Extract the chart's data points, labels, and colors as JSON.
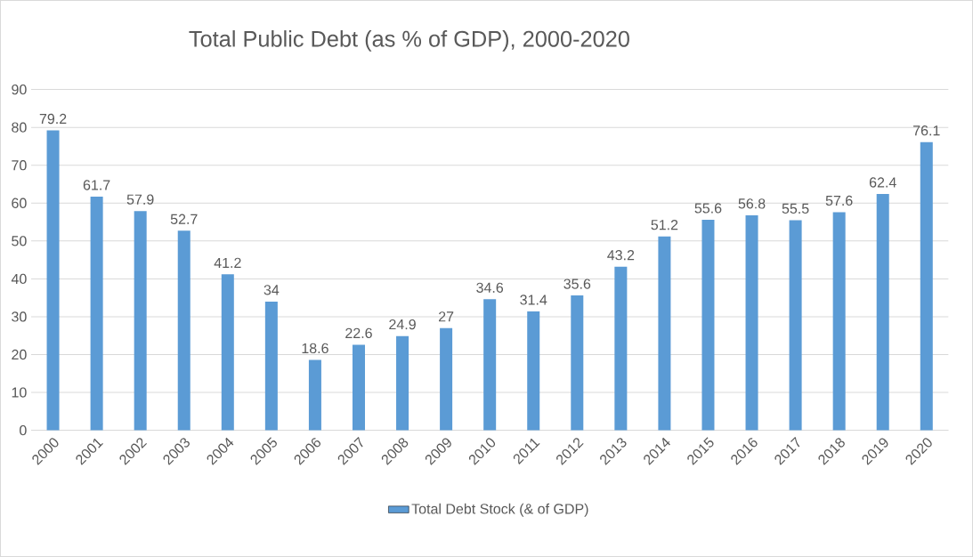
{
  "chart_data": {
    "type": "bar",
    "title": "Total Public Debt (as % of GDP), 2000-2020",
    "categories": [
      "2000",
      "2001",
      "2002",
      "2003",
      "2004",
      "2005",
      "2006",
      "2007",
      "2008",
      "2009",
      "2010",
      "2011",
      "2012",
      "2013",
      "2014",
      "2015",
      "2016",
      "2017",
      "2018",
      "2019",
      "2020"
    ],
    "series": [
      {
        "name": "Total Debt Stock (& of GDP)",
        "color": "#5b9bd5",
        "values": [
          79.2,
          61.7,
          57.9,
          52.7,
          41.2,
          34,
          18.6,
          22.6,
          24.9,
          27,
          34.6,
          31.4,
          35.6,
          43.2,
          51.2,
          55.6,
          56.8,
          55.5,
          57.6,
          62.4,
          76.1
        ]
      }
    ],
    "ylim": [
      0,
      90
    ],
    "yticks": [
      0,
      10,
      20,
      30,
      40,
      50,
      60,
      70,
      80,
      90
    ],
    "grid": "y",
    "legend": "bottom",
    "data_labels": true
  }
}
